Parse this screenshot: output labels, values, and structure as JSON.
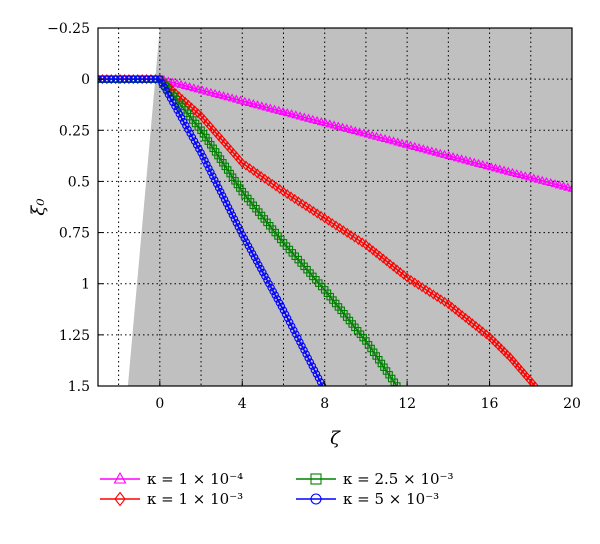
{
  "chart_data": {
    "type": "line",
    "title": "",
    "xlabel": "ζ",
    "ylabel": "ξ₀",
    "xlim": [
      -3,
      20
    ],
    "ylim": [
      -0.25,
      1.5
    ],
    "y_inverted": true,
    "grid": true,
    "xticks": [
      0,
      4,
      8,
      12,
      16,
      20
    ],
    "xtick_labels": [
      "0",
      "4",
      "8",
      "12",
      "16",
      "20"
    ],
    "yticks": [
      -0.25,
      0,
      0.25,
      0.5,
      0.75,
      1,
      1.25,
      1.5
    ],
    "ytick_labels": [
      "−0.25",
      "0",
      "0.25",
      "0.5",
      "0.75",
      "1",
      "1.25",
      "1.5"
    ],
    "shaded_region": {
      "color": "#c0c0c0",
      "boundary": [
        [
          -1.55,
          1.5
        ],
        [
          0.0,
          -0.25
        ]
      ]
    },
    "legend_position": "bottom",
    "series": [
      {
        "name": "κ = 1 × 10⁻⁴",
        "color": "#ff00ff",
        "marker": "triangle",
        "x": [
          -3,
          0,
          20
        ],
        "y": [
          0,
          0,
          0.535
        ]
      },
      {
        "name": "κ = 1 × 10⁻³",
        "color": "#ff0000",
        "marker": "diamond",
        "x": [
          -3,
          0,
          2,
          4,
          6,
          8,
          10,
          12,
          14,
          16,
          17,
          18.2
        ],
        "y": [
          0,
          0,
          0.18,
          0.41,
          0.55,
          0.68,
          0.81,
          0.97,
          1.1,
          1.26,
          1.36,
          1.5
        ]
      },
      {
        "name": "κ = 2.5 × 10⁻³",
        "color": "#008000",
        "marker": "square",
        "x": [
          -3,
          0,
          2,
          4,
          6,
          8,
          10,
          11.5
        ],
        "y": [
          0,
          0,
          0.25,
          0.55,
          0.8,
          1.03,
          1.28,
          1.5
        ]
      },
      {
        "name": "κ = 5 × 10⁻³",
        "color": "#0000ff",
        "marker": "circle",
        "x": [
          -3,
          0,
          2,
          4,
          6,
          7.9
        ],
        "y": [
          0,
          0,
          0.36,
          0.76,
          1.13,
          1.5
        ]
      }
    ]
  }
}
